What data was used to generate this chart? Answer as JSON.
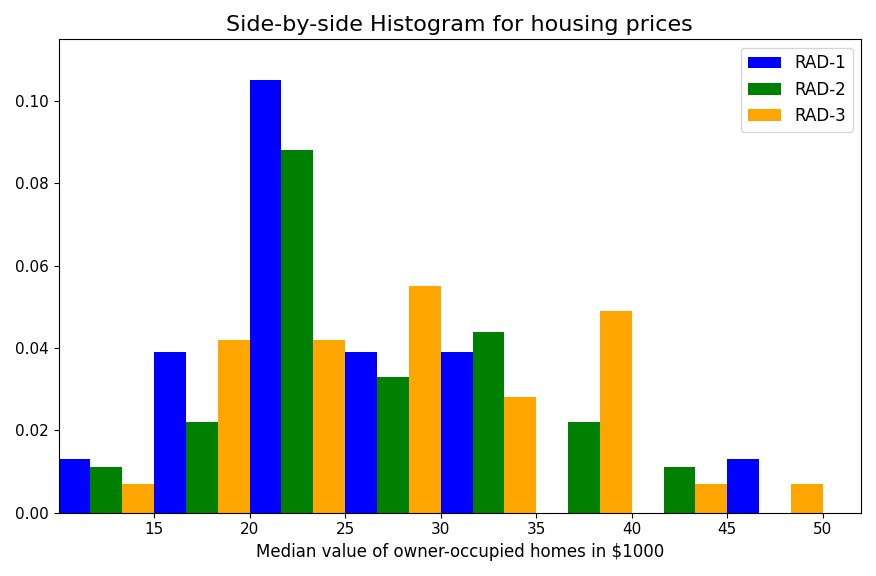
{
  "title": "Side-by-side Histogram for housing prices",
  "xlabel": "Median value of owner-occupied homes in $1000",
  "colors": [
    "blue",
    "green",
    "orange"
  ],
  "labels": [
    "RAD-1",
    "RAD-2",
    "RAD-3"
  ],
  "bin_edges": [
    10,
    15,
    20,
    25,
    30,
    35,
    40,
    45,
    50
  ],
  "rad1_density": [
    0.013,
    0.039,
    0.105,
    0.039,
    0.039,
    0.0,
    0.0,
    0.013
  ],
  "rad2_density": [
    0.011,
    0.022,
    0.088,
    0.033,
    0.044,
    0.022,
    0.011,
    0.0
  ],
  "rad3_density": [
    0.007,
    0.042,
    0.042,
    0.055,
    0.028,
    0.049,
    0.007,
    0.007
  ],
  "ylim": [
    0,
    0.115
  ],
  "yticks": [
    0.0,
    0.02,
    0.04,
    0.06,
    0.08,
    0.1
  ],
  "xticks": [
    15,
    20,
    25,
    30,
    35,
    40,
    45,
    50
  ],
  "xlim": [
    10,
    52
  ],
  "figsize": [
    8.76,
    5.76
  ],
  "dpi": 100,
  "title_fontsize": 16
}
